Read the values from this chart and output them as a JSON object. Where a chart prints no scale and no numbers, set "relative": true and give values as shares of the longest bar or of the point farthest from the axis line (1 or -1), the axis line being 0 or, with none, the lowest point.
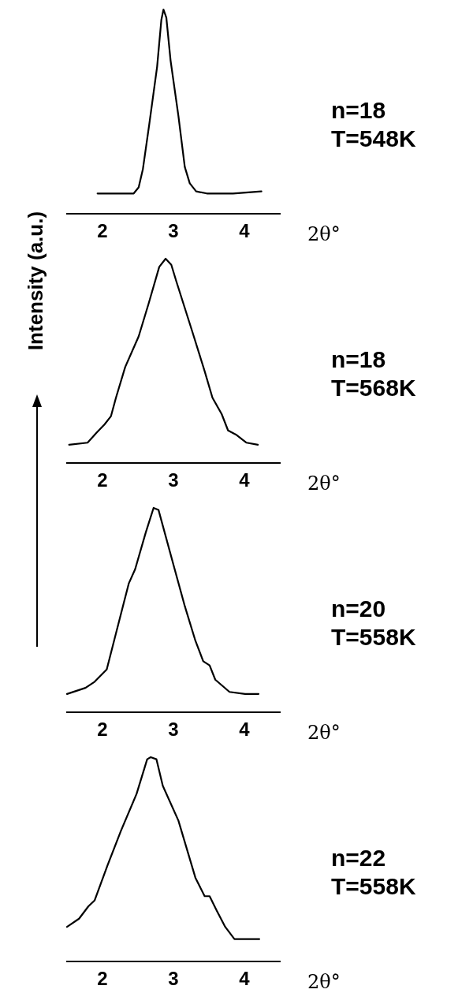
{
  "chart_data": [
    {
      "type": "line",
      "relative": true,
      "xlabel": "2θ°",
      "xlim": [
        1.5,
        4.5
      ],
      "xticks": [
        2,
        3,
        4
      ],
      "marker": "none",
      "annotations": [
        "n=18",
        "T=548K"
      ],
      "series": [
        {
          "color": "#000000",
          "x": [
            1.93,
            2.44,
            2.51,
            2.57,
            2.66,
            2.77,
            2.83,
            2.86,
            2.9,
            2.96,
            3.07,
            3.16,
            3.23,
            3.32,
            3.47,
            3.84,
            4.24
          ],
          "values": [
            0.1,
            0.1,
            0.13,
            0.22,
            0.44,
            0.72,
            0.95,
            1.0,
            0.96,
            0.75,
            0.48,
            0.23,
            0.15,
            0.11,
            0.1,
            0.1,
            0.11
          ]
        }
      ]
    },
    {
      "type": "line",
      "relative": true,
      "xlabel": "2θ°",
      "ylabel": "Intensity (a.u.)",
      "xlim": [
        1.5,
        4.5
      ],
      "xticks": [
        2,
        3,
        4
      ],
      "marker": "none",
      "annotations": [
        "n=18",
        "T=568K"
      ],
      "series": [
        {
          "color": "#000000",
          "x": [
            1.53,
            1.79,
            1.92,
            2.03,
            2.12,
            2.19,
            2.32,
            2.51,
            2.65,
            2.8,
            2.89,
            2.97,
            3.04,
            3.26,
            3.44,
            3.55,
            3.68,
            3.77,
            3.88,
            4.03,
            4.19
          ],
          "values": [
            0.09,
            0.1,
            0.15,
            0.19,
            0.23,
            0.32,
            0.47,
            0.62,
            0.78,
            0.96,
            1.0,
            0.97,
            0.89,
            0.65,
            0.45,
            0.32,
            0.24,
            0.16,
            0.14,
            0.1,
            0.09
          ]
        }
      ]
    },
    {
      "type": "line",
      "relative": true,
      "xlabel": "2θ°",
      "xlim": [
        1.5,
        4.5
      ],
      "xticks": [
        2,
        3,
        4
      ],
      "marker": "none",
      "annotations": [
        "n=20",
        "T=558K"
      ],
      "series": [
        {
          "color": "#000000",
          "x": [
            1.5,
            1.76,
            1.89,
            2.06,
            2.2,
            2.37,
            2.46,
            2.61,
            2.72,
            2.79,
            3.01,
            3.16,
            3.31,
            3.42,
            3.51,
            3.59,
            3.79,
            4.01,
            4.2
          ],
          "values": [
            0.09,
            0.12,
            0.15,
            0.21,
            0.4,
            0.63,
            0.7,
            0.88,
            1.0,
            0.99,
            0.71,
            0.52,
            0.35,
            0.25,
            0.23,
            0.16,
            0.1,
            0.09,
            0.09
          ]
        }
      ]
    },
    {
      "type": "line",
      "relative": true,
      "xlabel": "2θ°",
      "xlim": [
        1.5,
        4.5
      ],
      "xticks": [
        2,
        3,
        4
      ],
      "marker": "none",
      "annotations": [
        "n=22",
        "T=558K"
      ],
      "series": [
        {
          "color": "#000000",
          "x": [
            1.5,
            1.67,
            1.8,
            1.89,
            2.07,
            2.26,
            2.48,
            2.63,
            2.68,
            2.76,
            2.85,
            3.07,
            3.31,
            3.44,
            3.51,
            3.61,
            3.73,
            3.86,
            4.07,
            4.21
          ],
          "values": [
            0.17,
            0.21,
            0.27,
            0.3,
            0.47,
            0.64,
            0.82,
            0.99,
            1.0,
            0.99,
            0.86,
            0.69,
            0.41,
            0.32,
            0.32,
            0.25,
            0.17,
            0.11,
            0.11,
            0.11
          ]
        }
      ]
    }
  ]
}
